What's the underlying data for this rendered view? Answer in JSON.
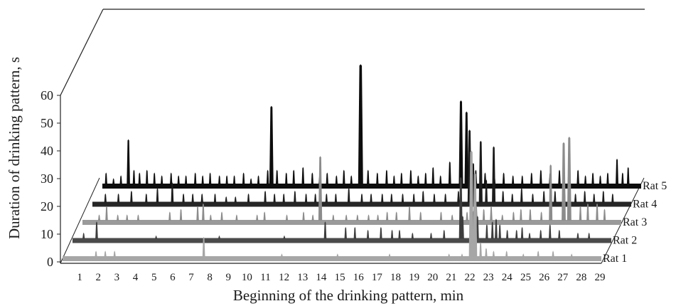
{
  "chart_data": {
    "type": "area",
    "xlabel": "Beginning of the drinking pattern, min",
    "ylabel": "Duration of drinking pattern, s",
    "x_ticks": [
      "1",
      "2",
      "3",
      "4",
      "5",
      "6",
      "7",
      "8",
      "9",
      "10",
      "11",
      "12",
      "13",
      "14",
      "15",
      "16",
      "17",
      "18",
      "19",
      "20",
      "21",
      "22",
      "23",
      "24",
      "25",
      "26",
      "27",
      "28",
      "29"
    ],
    "y_ticks": [
      "0",
      "10",
      "20",
      "30",
      "40",
      "50",
      "60"
    ],
    "xlim": [
      0,
      29
    ],
    "ylim": [
      0,
      60
    ],
    "legend": "series labels at right end of each band",
    "series": [
      {
        "name": "Rat 1",
        "color": "#a6a6a6",
        "baseline": "#a6a6a6",
        "peaks": [
          [
            1.8,
            2
          ],
          [
            2.3,
            2
          ],
          [
            2.8,
            2
          ],
          [
            7.6,
            7
          ],
          [
            11.8,
            1
          ],
          [
            14.8,
            1
          ],
          [
            17.6,
            1
          ],
          [
            20.8,
            1
          ],
          [
            21.5,
            1
          ],
          [
            22.0,
            38
          ],
          [
            22.2,
            30
          ],
          [
            22.5,
            5
          ],
          [
            22.8,
            3
          ],
          [
            23.2,
            2
          ],
          [
            23.9,
            2
          ],
          [
            24.8,
            1
          ],
          [
            25.6,
            2
          ],
          [
            26.4,
            2
          ],
          [
            27.4,
            1
          ]
        ]
      },
      {
        "name": "Rat 2",
        "color": "#3d3d3d",
        "baseline": "#4a4a4a",
        "peaks": [
          [
            0.6,
            2
          ],
          [
            1.3,
            6
          ],
          [
            4.5,
            1
          ],
          [
            7.9,
            1
          ],
          [
            11.4,
            1
          ],
          [
            13.6,
            6
          ],
          [
            14.7,
            4
          ],
          [
            15.2,
            4
          ],
          [
            15.9,
            3
          ],
          [
            16.6,
            4
          ],
          [
            17.2,
            3
          ],
          [
            17.6,
            3
          ],
          [
            18.3,
            2
          ],
          [
            19.3,
            2
          ],
          [
            20.0,
            3
          ],
          [
            20.9,
            22
          ],
          [
            21.0,
            8
          ],
          [
            21.6,
            10
          ],
          [
            21.8,
            8
          ],
          [
            22.3,
            5
          ],
          [
            22.6,
            6
          ],
          [
            22.8,
            7
          ],
          [
            23.0,
            5
          ],
          [
            23.4,
            3
          ],
          [
            23.9,
            3
          ],
          [
            24.2,
            4
          ],
          [
            24.6,
            2
          ],
          [
            25.2,
            3
          ],
          [
            25.7,
            5
          ],
          [
            26.2,
            3
          ],
          [
            27.2,
            2
          ],
          [
            27.8,
            2
          ]
        ]
      },
      {
        "name": "Rat 3",
        "color": "#8c8c8c",
        "baseline": "#9a9a9a",
        "peaks": [
          [
            0.9,
            2
          ],
          [
            1.3,
            5
          ],
          [
            1.9,
            2
          ],
          [
            2.4,
            2
          ],
          [
            3.0,
            2
          ],
          [
            4.7,
            3
          ],
          [
            5.3,
            4
          ],
          [
            6.2,
            5
          ],
          [
            6.5,
            6
          ],
          [
            6.9,
            2
          ],
          [
            7.5,
            3
          ],
          [
            8.3,
            2
          ],
          [
            9.4,
            2
          ],
          [
            9.8,
            3
          ],
          [
            11.0,
            2
          ],
          [
            11.9,
            3
          ],
          [
            12.4,
            2
          ],
          [
            12.8,
            23
          ],
          [
            13.5,
            2
          ],
          [
            14.2,
            2
          ],
          [
            14.8,
            2
          ],
          [
            15.4,
            2
          ],
          [
            15.9,
            2
          ],
          [
            16.4,
            3
          ],
          [
            16.9,
            3
          ],
          [
            17.6,
            5
          ],
          [
            18.2,
            3
          ],
          [
            19.3,
            3
          ],
          [
            19.9,
            2
          ],
          [
            20.7,
            3
          ],
          [
            21.2,
            5
          ],
          [
            21.6,
            4
          ],
          [
            22.0,
            5
          ],
          [
            22.6,
            2
          ],
          [
            23.2,
            3
          ],
          [
            23.6,
            4
          ],
          [
            24.1,
            4
          ],
          [
            24.7,
            3
          ],
          [
            25.2,
            20
          ],
          [
            25.9,
            28
          ],
          [
            26.2,
            30
          ],
          [
            26.8,
            5
          ],
          [
            27.2,
            6
          ],
          [
            27.7,
            6
          ],
          [
            28.1,
            4
          ]
        ]
      },
      {
        "name": "Rat 4",
        "color": "#1c1c1c",
        "baseline": "#262626",
        "peaks": [
          [
            0.7,
            3
          ],
          [
            1.4,
            3
          ],
          [
            2.1,
            4
          ],
          [
            2.9,
            3
          ],
          [
            3.5,
            5
          ],
          [
            4.3,
            7
          ],
          [
            4.9,
            3
          ],
          [
            5.4,
            3
          ],
          [
            5.9,
            3
          ],
          [
            6.6,
            3
          ],
          [
            7.2,
            2
          ],
          [
            7.7,
            2
          ],
          [
            8.4,
            3
          ],
          [
            9.3,
            4
          ],
          [
            9.8,
            3
          ],
          [
            10.3,
            3
          ],
          [
            10.9,
            4
          ],
          [
            11.5,
            3
          ],
          [
            12.0,
            3
          ],
          [
            12.6,
            3
          ],
          [
            13.1,
            3
          ],
          [
            13.8,
            5
          ],
          [
            14.5,
            3
          ],
          [
            15.0,
            3
          ],
          [
            15.6,
            3
          ],
          [
            16.1,
            3
          ],
          [
            16.7,
            3
          ],
          [
            17.3,
            3
          ],
          [
            17.8,
            4
          ],
          [
            18.4,
            3
          ],
          [
            19.0,
            3
          ],
          [
            19.7,
            4
          ],
          [
            20.3,
            26
          ],
          [
            20.5,
            14
          ],
          [
            20.9,
            22
          ],
          [
            21.2,
            8
          ],
          [
            21.6,
            20
          ],
          [
            22.1,
            4
          ],
          [
            22.6,
            3
          ],
          [
            23.1,
            5
          ],
          [
            23.7,
            3
          ],
          [
            24.3,
            4
          ],
          [
            24.9,
            4
          ],
          [
            25.4,
            5
          ],
          [
            26.0,
            3
          ],
          [
            26.5,
            4
          ],
          [
            27.0,
            3
          ],
          [
            27.5,
            4
          ],
          [
            28.0,
            3
          ]
        ]
      },
      {
        "name": "Rat 5",
        "color": "#0d0d0d",
        "baseline": "#0d0d0d",
        "peaks": [
          [
            0.2,
            4
          ],
          [
            0.6,
            2
          ],
          [
            1.0,
            3
          ],
          [
            1.4,
            16
          ],
          [
            1.7,
            5
          ],
          [
            2.0,
            4
          ],
          [
            2.4,
            5
          ],
          [
            2.8,
            4
          ],
          [
            3.2,
            3
          ],
          [
            3.7,
            4
          ],
          [
            4.1,
            3
          ],
          [
            4.5,
            3
          ],
          [
            5.0,
            4
          ],
          [
            5.4,
            3
          ],
          [
            5.8,
            4
          ],
          [
            6.3,
            3
          ],
          [
            6.7,
            3
          ],
          [
            7.1,
            3
          ],
          [
            7.6,
            4
          ],
          [
            8.0,
            2
          ],
          [
            8.4,
            3
          ],
          [
            8.9,
            5
          ],
          [
            9.1,
            28
          ],
          [
            9.4,
            5
          ],
          [
            9.9,
            4
          ],
          [
            10.3,
            5
          ],
          [
            10.8,
            6
          ],
          [
            11.3,
            4
          ],
          [
            11.7,
            3
          ],
          [
            12.1,
            4
          ],
          [
            12.6,
            3
          ],
          [
            13.0,
            5
          ],
          [
            13.4,
            3
          ],
          [
            13.9,
            43
          ],
          [
            14.3,
            5
          ],
          [
            14.8,
            4
          ],
          [
            15.3,
            5
          ],
          [
            15.7,
            3
          ],
          [
            16.1,
            4
          ],
          [
            16.6,
            5
          ],
          [
            17.0,
            3
          ],
          [
            17.4,
            4
          ],
          [
            17.8,
            6
          ],
          [
            18.2,
            3
          ],
          [
            18.7,
            8
          ],
          [
            19.3,
            30
          ],
          [
            19.6,
            26
          ],
          [
            20.1,
            5
          ],
          [
            20.6,
            4
          ],
          [
            21.1,
            3
          ],
          [
            21.6,
            4
          ],
          [
            22.1,
            3
          ],
          [
            22.6,
            3
          ],
          [
            23.1,
            4
          ],
          [
            23.6,
            5
          ],
          [
            24.1,
            4
          ],
          [
            24.6,
            5
          ],
          [
            25.1,
            4
          ],
          [
            25.6,
            5
          ],
          [
            26.0,
            3
          ],
          [
            26.4,
            4
          ],
          [
            26.8,
            3
          ],
          [
            27.2,
            4
          ],
          [
            27.7,
            9
          ],
          [
            28.0,
            4
          ],
          [
            28.3,
            6
          ]
        ]
      }
    ]
  }
}
